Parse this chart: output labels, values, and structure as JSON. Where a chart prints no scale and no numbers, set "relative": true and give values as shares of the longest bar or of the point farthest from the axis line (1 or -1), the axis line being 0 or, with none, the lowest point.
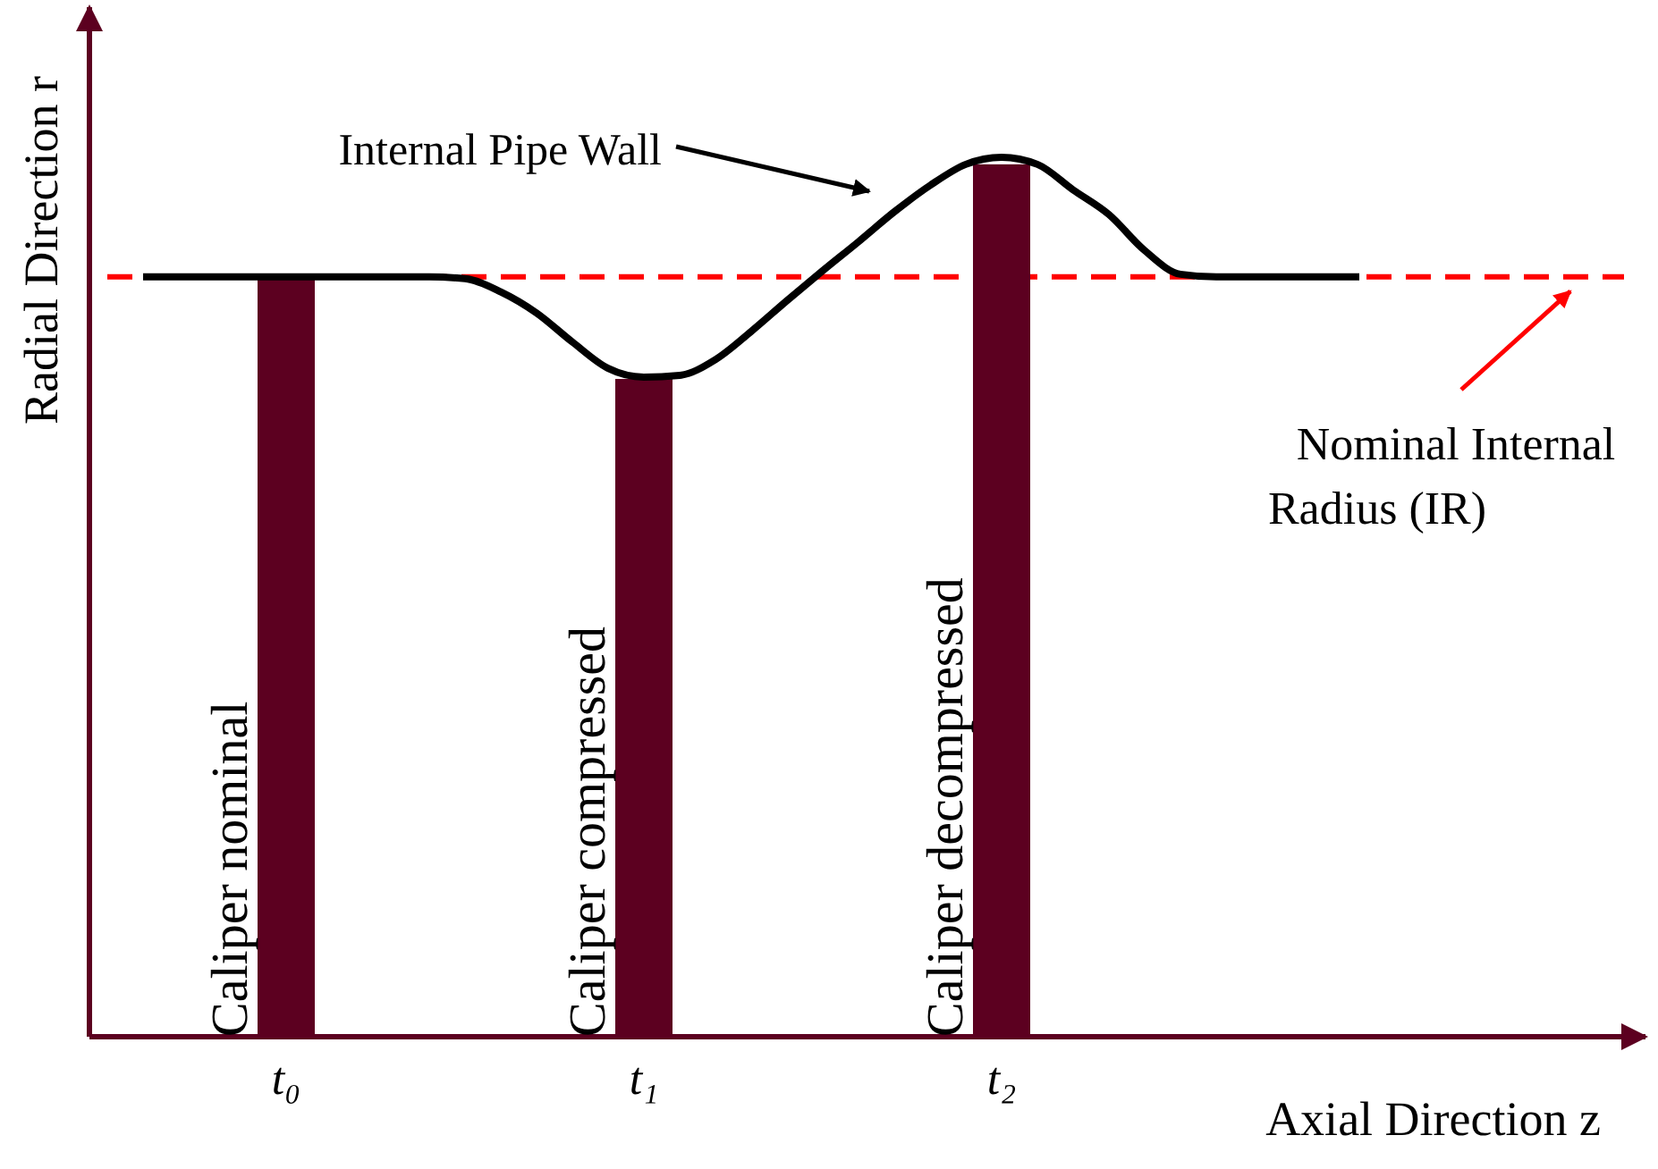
{
  "chart_data": {
    "type": "bar",
    "relative": true,
    "xlabel": "Axial Direction z",
    "ylabel": "Radial Direction r",
    "categories": [
      null,
      null,
      null,
      null,
      "t₀",
      null,
      null,
      null,
      null,
      null,
      null,
      null,
      null,
      null,
      "t₁",
      null,
      null,
      null,
      null,
      null,
      null,
      null,
      null,
      null,
      "t₂",
      null,
      null,
      null,
      null,
      null,
      null,
      null,
      null,
      null,
      null,
      null,
      null,
      null,
      null,
      null,
      null,
      null
    ],
    "series": [
      {
        "color": "#5c0020",
        "values": [
          null,
          null,
          null,
          null,
          0.864,
          null,
          null,
          null,
          null,
          null,
          null,
          null,
          null,
          null,
          0.748,
          null,
          null,
          null,
          null,
          null,
          null,
          null,
          null,
          null,
          0.992,
          null,
          null,
          null,
          null,
          null,
          null,
          null,
          null,
          null,
          null,
          null,
          null,
          null,
          null,
          null,
          null,
          null
        ]
      },
      {
        "type": "line",
        "color": "#000000",
        "values": [
          0.864,
          0.864,
          0.864,
          0.864,
          0.864,
          0.864,
          0.864,
          0.864,
          0.864,
          0.862,
          0.847,
          0.823,
          0.79,
          0.76,
          0.75,
          0.752,
          0.77,
          0.802,
          0.837,
          0.871,
          0.904,
          0.938,
          0.968,
          0.992,
          1,
          0.992,
          0.963,
          0.935,
          0.894,
          0.867,
          0.864,
          0.864,
          0.864,
          0.864,
          0.864,
          null,
          null,
          null,
          null,
          null,
          null,
          null
        ]
      }
    ],
    "ref_lines": [
      {
        "axis": "y",
        "value": 0.864,
        "label": "Nominal Internal Radius (IR)",
        "color": "#ff0000",
        "line_style": "dashed"
      }
    ],
    "annotations": [
      "Internal Pipe Wall",
      {
        "text": "Caliper nominal",
        "x": "t₀",
        "y": 0
      },
      {
        "text": "Caliper compressed",
        "x": "t₁",
        "y": 0
      },
      {
        "text": "Caliper decompressed",
        "x": "t₂",
        "y": 0
      }
    ]
  }
}
